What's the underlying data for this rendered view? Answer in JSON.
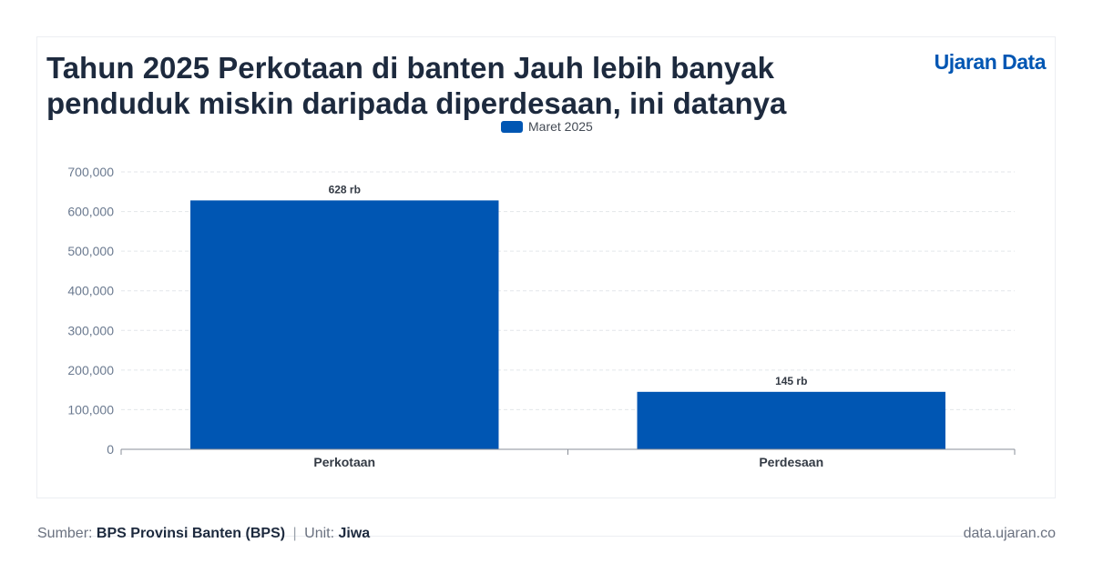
{
  "header": {
    "title": "Tahun 2025 Perkotaan di banten Jauh lebih banyak penduduk miskin daripada diperdesaan, ini datanya",
    "brand": "Ujaran Data"
  },
  "footer": {
    "source_label": "Sumber:",
    "source_value": "BPS Provinsi Banten (BPS)",
    "separator": "|",
    "unit_label": "Unit:",
    "unit_value": "Jiwa",
    "site": "data.ujaran.co"
  },
  "colors": {
    "bar": "#0056b3",
    "title": "#1d2a3e",
    "brand": "#0056b3",
    "tick": "#6b7a90",
    "grid": "#e3e6ea",
    "axis": "#8a8f98"
  },
  "chart_data": {
    "type": "bar",
    "categories": [
      "Perkotaan",
      "Perdesaan"
    ],
    "series": [
      {
        "name": "Maret 2025",
        "values": [
          628000,
          145000
        ],
        "labels": [
          "628 rb",
          "145 rb"
        ]
      }
    ],
    "ylim": [
      0,
      700000
    ],
    "yticks": [
      0,
      100000,
      200000,
      300000,
      400000,
      500000,
      600000,
      700000
    ],
    "ytick_labels": [
      "0",
      "100,000",
      "200,000",
      "300,000",
      "400,000",
      "500,000",
      "600,000",
      "700,000"
    ],
    "grid": true,
    "legend_position": "top-center"
  }
}
